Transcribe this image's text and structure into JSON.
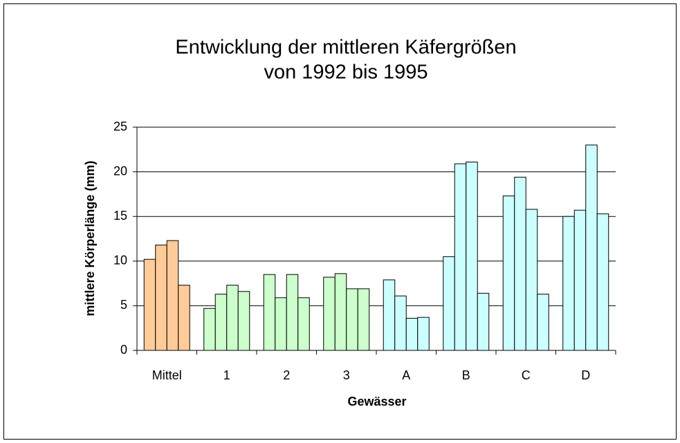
{
  "chart_data": {
    "type": "bar",
    "title": [
      "Entwicklung der mittleren Käfergrößen",
      "von 1992 bis 1995"
    ],
    "x_label": "Gewässer",
    "y_label": "mittlere Körperlänge  (mm)",
    "categories": [
      "Mittel",
      "1",
      "2",
      "3",
      "A",
      "B",
      "C",
      "D"
    ],
    "category_colors": [
      "#ffcc99",
      "#ccffcc",
      "#ccffcc",
      "#ccffcc",
      "#ccffff",
      "#ccffff",
      "#ccffff",
      "#ccffff"
    ],
    "series": [
      {
        "values": [
          10.2,
          4.7,
          8.5,
          8.2,
          7.9,
          10.5,
          17.3,
          15.0
        ]
      },
      {
        "values": [
          11.8,
          6.3,
          5.9,
          8.6,
          6.1,
          20.9,
          19.4,
          15.7
        ]
      },
      {
        "values": [
          12.3,
          7.3,
          8.5,
          6.9,
          3.6,
          21.1,
          15.8,
          23.0
        ]
      },
      {
        "values": [
          7.3,
          6.6,
          5.9,
          6.9,
          3.7,
          6.4,
          6.3,
          15.3
        ]
      }
    ],
    "ylim": [
      0,
      25
    ],
    "yticks": [
      0,
      5,
      10,
      15,
      20,
      25
    ],
    "grid": true
  }
}
